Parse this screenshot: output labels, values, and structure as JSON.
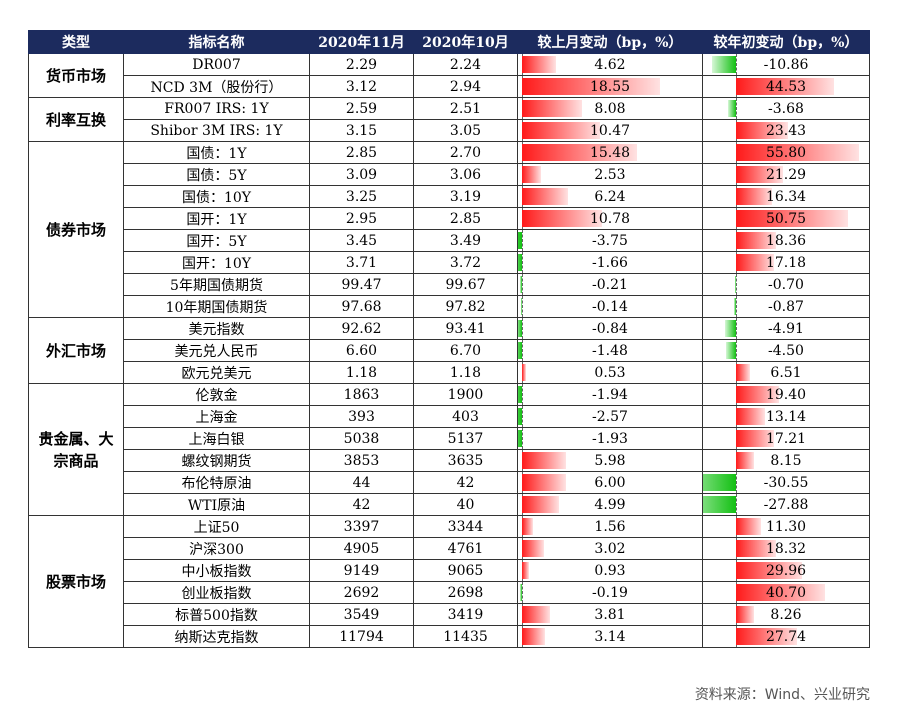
{
  "headers": [
    "类型",
    "指标名称",
    "2020年11月",
    "2020年10月",
    "较上月变动（bp，%）",
    "较年初变动（bp，%）"
  ],
  "groups": [
    {
      "name": "货币市场",
      "rows": [
        {
          "name": "DR007",
          "nov": "2.29",
          "oct": "2.24",
          "mom": 4.62,
          "mom_text": "4.62",
          "ytd": -10.86,
          "ytd_text": "-10.86"
        },
        {
          "name": "NCD 3M（股份行）",
          "nov": "3.12",
          "oct": "2.94",
          "mom": 18.55,
          "mom_text": "18.55",
          "ytd": 44.53,
          "ytd_text": "44.53"
        }
      ]
    },
    {
      "name": "利率互换",
      "rows": [
        {
          "name": "FR007 IRS: 1Y",
          "nov": "2.59",
          "oct": "2.51",
          "mom": 8.08,
          "mom_text": "8.08",
          "ytd": -3.68,
          "ytd_text": "-3.68"
        },
        {
          "name": "Shibor 3M IRS: 1Y",
          "nov": "3.15",
          "oct": "3.05",
          "mom": 10.47,
          "mom_text": "10.47",
          "ytd": 23.43,
          "ytd_text": "23.43"
        }
      ]
    },
    {
      "name": "债券市场",
      "rows": [
        {
          "name": "国债：1Y",
          "nov": "2.85",
          "oct": "2.70",
          "mom": 15.48,
          "mom_text": "15.48",
          "ytd": 55.8,
          "ytd_text": "55.80"
        },
        {
          "name": "国债：5Y",
          "nov": "3.09",
          "oct": "3.06",
          "mom": 2.53,
          "mom_text": "2.53",
          "ytd": 21.29,
          "ytd_text": "21.29"
        },
        {
          "name": "国债：10Y",
          "nov": "3.25",
          "oct": "3.19",
          "mom": 6.24,
          "mom_text": "6.24",
          "ytd": 16.34,
          "ytd_text": "16.34"
        },
        {
          "name": "国开：1Y",
          "nov": "2.95",
          "oct": "2.85",
          "mom": 10.78,
          "mom_text": "10.78",
          "ytd": 50.75,
          "ytd_text": "50.75"
        },
        {
          "name": "国开：5Y",
          "nov": "3.45",
          "oct": "3.49",
          "mom": -3.75,
          "mom_text": "-3.75",
          "ytd": 18.36,
          "ytd_text": "18.36"
        },
        {
          "name": "国开：10Y",
          "nov": "3.71",
          "oct": "3.72",
          "mom": -1.66,
          "mom_text": "-1.66",
          "ytd": 17.18,
          "ytd_text": "17.18"
        },
        {
          "name": "5年期国债期货",
          "nov": "99.47",
          "oct": "99.67",
          "mom": -0.21,
          "mom_text": "-0.21",
          "ytd": -0.7,
          "ytd_text": "-0.70"
        },
        {
          "name": "10年期国债期货",
          "nov": "97.68",
          "oct": "97.82",
          "mom": -0.14,
          "mom_text": "-0.14",
          "ytd": -0.87,
          "ytd_text": "-0.87"
        }
      ]
    },
    {
      "name": "外汇市场",
      "rows": [
        {
          "name": "美元指数",
          "nov": "92.62",
          "oct": "93.41",
          "mom": -0.84,
          "mom_text": "-0.84",
          "ytd": -4.91,
          "ytd_text": "-4.91"
        },
        {
          "name": "美元兑人民币",
          "nov": "6.60",
          "oct": "6.70",
          "mom": -1.48,
          "mom_text": "-1.48",
          "ytd": -4.5,
          "ytd_text": "-4.50"
        },
        {
          "name": "欧元兑美元",
          "nov": "1.18",
          "oct": "1.18",
          "mom": 0.53,
          "mom_text": "0.53",
          "ytd": 6.51,
          "ytd_text": "6.51"
        }
      ]
    },
    {
      "name": "贵金属、大宗商品",
      "rows": [
        {
          "name": "伦敦金",
          "nov": "1863",
          "oct": "1900",
          "mom": -1.94,
          "mom_text": "-1.94",
          "ytd": 19.4,
          "ytd_text": "19.40"
        },
        {
          "name": "上海金",
          "nov": "393",
          "oct": "403",
          "mom": -2.57,
          "mom_text": "-2.57",
          "ytd": 13.14,
          "ytd_text": "13.14"
        },
        {
          "name": "上海白银",
          "nov": "5038",
          "oct": "5137",
          "mom": -1.93,
          "mom_text": "-1.93",
          "ytd": 17.21,
          "ytd_text": "17.21"
        },
        {
          "name": "螺纹钢期货",
          "nov": "3853",
          "oct": "3635",
          "mom": 5.98,
          "mom_text": "5.98",
          "ytd": 8.15,
          "ytd_text": "8.15"
        },
        {
          "name": "布伦特原油",
          "nov": "44",
          "oct": "42",
          "mom": 6.0,
          "mom_text": "6.00",
          "ytd": -30.55,
          "ytd_text": "-30.55"
        },
        {
          "name": "WTI原油",
          "nov": "42",
          "oct": "40",
          "mom": 4.99,
          "mom_text": "4.99",
          "ytd": -27.88,
          "ytd_text": "-27.88"
        }
      ]
    },
    {
      "name": "股票市场",
      "rows": [
        {
          "name": "上证50",
          "nov": "3397",
          "oct": "3344",
          "mom": 1.56,
          "mom_text": "1.56",
          "ytd": 11.3,
          "ytd_text": "11.30"
        },
        {
          "name": "沪深300",
          "nov": "4905",
          "oct": "4761",
          "mom": 3.02,
          "mom_text": "3.02",
          "ytd": 18.32,
          "ytd_text": "18.32"
        },
        {
          "name": "中小板指数",
          "nov": "9149",
          "oct": "9065",
          "mom": 0.93,
          "mom_text": "0.93",
          "ytd": 29.96,
          "ytd_text": "29.96"
        },
        {
          "name": "创业板指数",
          "nov": "2692",
          "oct": "2698",
          "mom": -0.19,
          "mom_text": "-0.19",
          "ytd": 40.7,
          "ytd_text": "40.70"
        },
        {
          "name": "标普500指数",
          "nov": "3549",
          "oct": "3419",
          "mom": 3.81,
          "mom_text": "3.81",
          "ytd": 8.26,
          "ytd_text": "8.26"
        },
        {
          "name": "纳斯达克指数",
          "nov": "11794",
          "oct": "11435",
          "mom": 3.14,
          "mom_text": "3.14",
          "ytd": 27.74,
          "ytd_text": "27.74"
        }
      ]
    }
  ],
  "source": "资料来源：Wind、兴业研究",
  "colors": {
    "header_bg": "#1c2b5e",
    "positive": "#ff1a1a",
    "negative": "#13c013"
  }
}
